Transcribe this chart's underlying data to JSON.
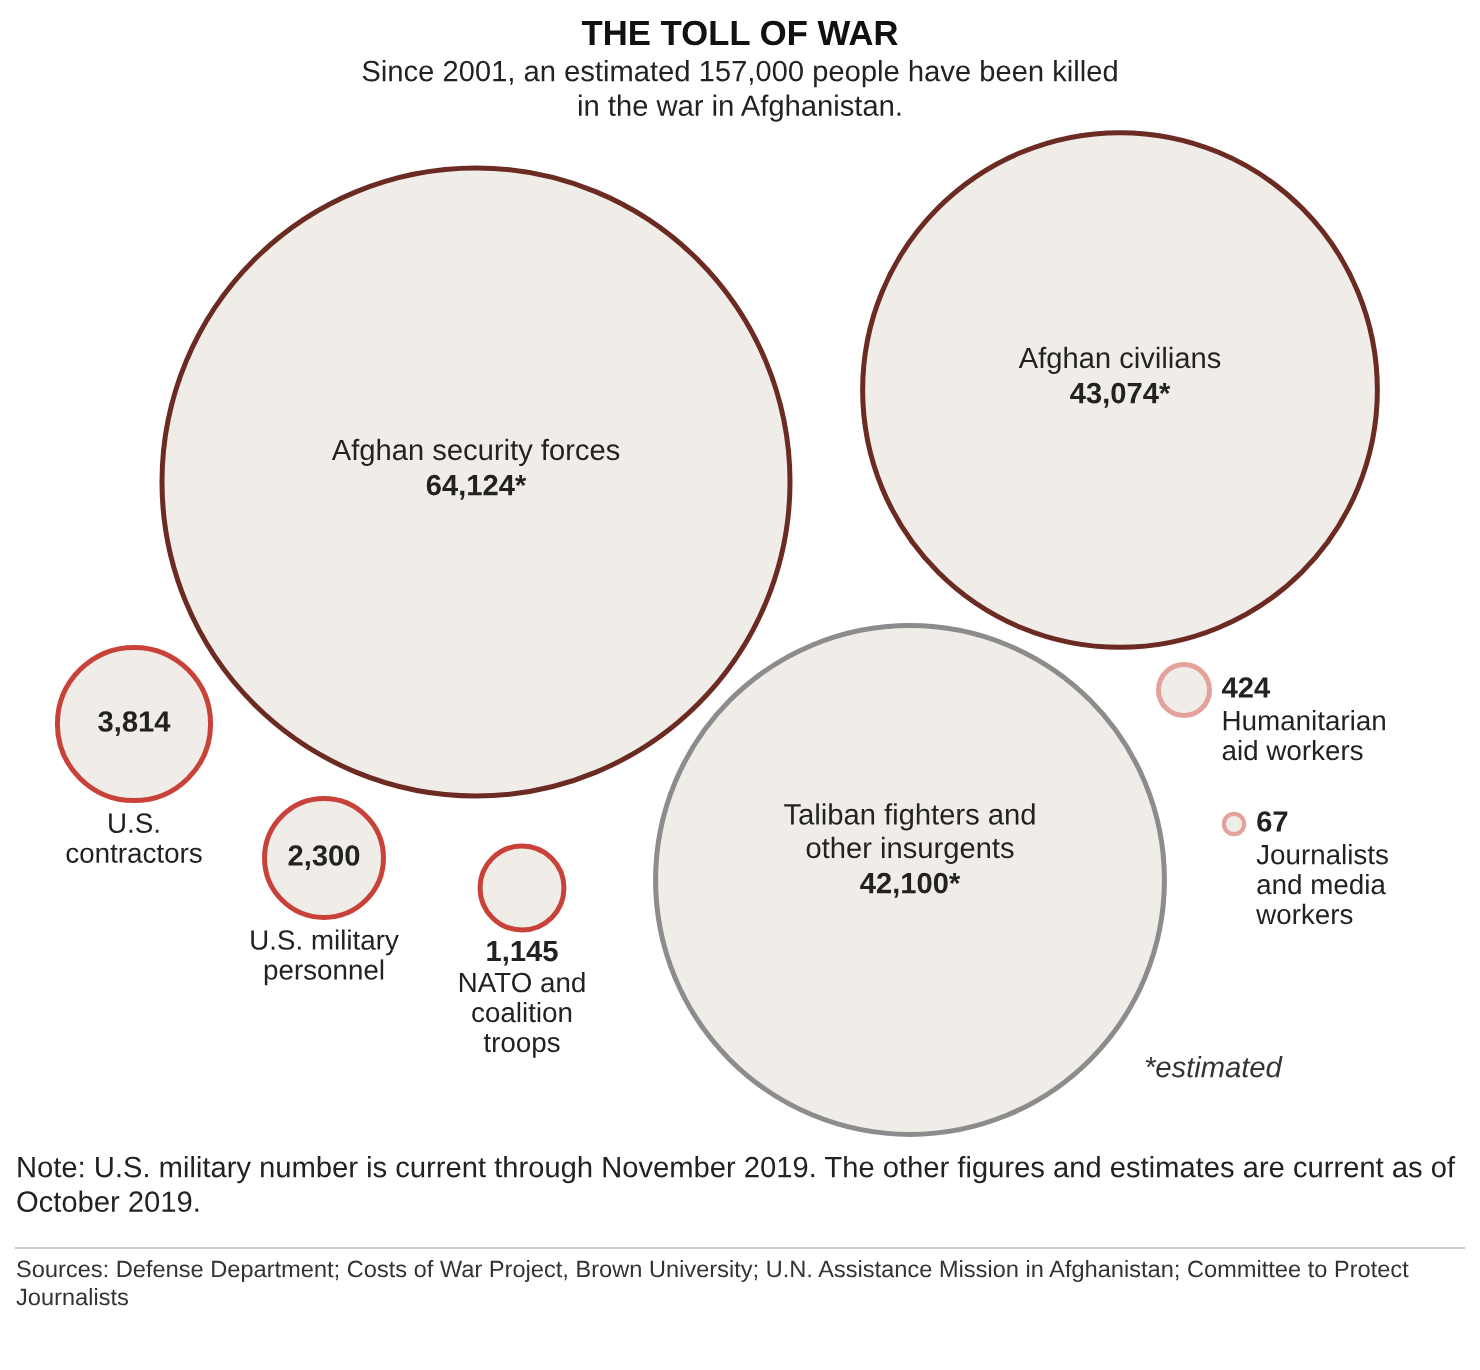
{
  "chart_data": {
    "type": "other",
    "title": "THE TOLL OF WAR",
    "subtitle": "Since 2001, an estimated 157,000 people have been killed\nin the war in Afghanistan.",
    "categories": [
      "Afghan security forces",
      "Afghan civilians",
      "Taliban fighters and\nother insurgents",
      "U.S.\ncontractors",
      "U.S. military\npersonnel",
      "NATO and\ncoalition\ntroops",
      "Humanitarian\naid workers",
      "Journalists\nand media\nworkers"
    ],
    "values": [
      64124,
      43074,
      42100,
      3814,
      2300,
      1145,
      424,
      67
    ],
    "value_labels": [
      "64,124*",
      "43,074*",
      "42,100*",
      "3,814",
      "2,300",
      "1,145",
      "424",
      "67"
    ],
    "colors": [
      "#6b2a22",
      "#6b2a22",
      "#8c8c8c",
      "#c8423a",
      "#c8423a",
      "#c8423a",
      "#e3a29c",
      "#e3a29c"
    ],
    "annotations": [
      "*estimated",
      "Note: U.S. military number is current through November 2019. The other figures and estimates are current as of October 2019.",
      "Sources: Defense Department; Costs of War Project, Brown University; U.N. Assistance Mission in Afghanistan; Committee to Protect Journalists"
    ]
  }
}
